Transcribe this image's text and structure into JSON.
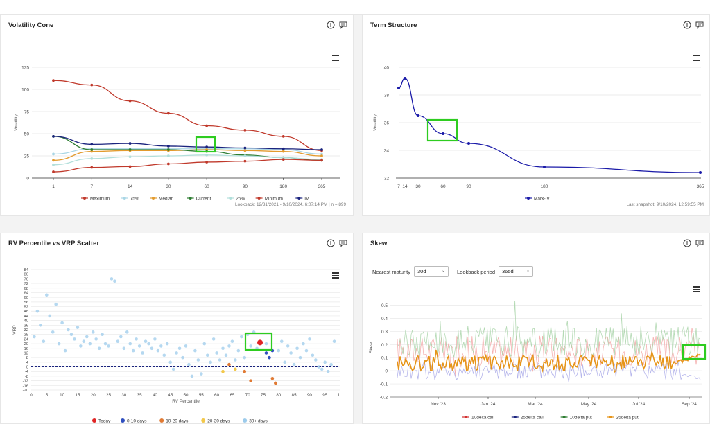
{
  "panels": {
    "vol_cone": {
      "title": "Volatility Cone",
      "footer": "Lookback: 12/31/2021 - 9/10/2024, 6:07:14 PM | n = 899"
    },
    "term": {
      "title": "Term Structure",
      "footer": "Last snapshot: 9/10/2024, 12:59:55 PM"
    },
    "scatter": {
      "title": "RV Percentile vs VRP Scatter"
    },
    "skew": {
      "title": "Skew",
      "nearest_label": "Nearest maturity",
      "nearest_value": "30d",
      "lookback_label": "Lookback period",
      "lookback_value": "365d"
    }
  },
  "icons": {
    "info": "info-icon",
    "comment": "comment-icon",
    "menu": "hamburger-menu-icon"
  },
  "chart_data": [
    {
      "type": "line",
      "title": "Volatility Cone",
      "ylabel": "Volatility",
      "categories": [
        "1",
        "7",
        "14",
        "30",
        "60",
        "90",
        "180",
        "365"
      ],
      "yticks": [
        0,
        25,
        50,
        75,
        100,
        125
      ],
      "ylim": [
        0,
        125
      ],
      "series": [
        {
          "name": "Maximum",
          "color": "#c0392b",
          "values": [
            110,
            105,
            87,
            73,
            59,
            54,
            47,
            31
          ]
        },
        {
          "name": "75%",
          "color": "#a9d6e5",
          "values": [
            27,
            33,
            33,
            33,
            33,
            33,
            32,
            27
          ]
        },
        {
          "name": "Median",
          "color": "#e39b2e",
          "values": [
            20,
            30,
            31,
            31,
            32,
            31,
            30,
            25
          ]
        },
        {
          "name": "Current",
          "color": "#2e7d32",
          "values": [
            47,
            32,
            32,
            32,
            30,
            26,
            23,
            20
          ]
        },
        {
          "name": "25%",
          "color": "#b2dfdb",
          "values": [
            15,
            22,
            24,
            25,
            26,
            25,
            23,
            21
          ]
        },
        {
          "name": "Minimum",
          "color": "#c0392b",
          "values": [
            7,
            12,
            13,
            16,
            18,
            19,
            21,
            20
          ]
        },
        {
          "name": "IV",
          "color": "#1a237e",
          "values": [
            47,
            38,
            39,
            36,
            35,
            34,
            33,
            32
          ]
        }
      ]
    },
    {
      "type": "line",
      "title": "Term Structure",
      "ylabel": "Volatility",
      "xticks": [
        "7",
        "14",
        "30",
        "60",
        "90",
        "180",
        "365"
      ],
      "yticks": [
        32,
        34,
        36,
        38,
        40
      ],
      "ylim": [
        32,
        40
      ],
      "series": [
        {
          "name": "Mark-IV",
          "color": "#1a1aa8",
          "points": [
            [
              1,
              38.5
            ],
            [
              7,
              39.2
            ],
            [
              30,
              36.5
            ],
            [
              60,
              35.2
            ],
            [
              90,
              34.5
            ],
            [
              180,
              32.8
            ],
            [
              365,
              32.4
            ]
          ]
        }
      ]
    },
    {
      "type": "scatter",
      "title": "RV Percentile vs VRP Scatter",
      "xlabel": "RV Percentile",
      "ylabel": "VRP",
      "xticks": [
        "0",
        "5",
        "10",
        "15",
        "20",
        "25",
        "30",
        "35",
        "40",
        "45",
        "50",
        "55",
        "60",
        "65",
        "70",
        "75",
        "80",
        "85",
        "90",
        "95",
        "1..."
      ],
      "yticks": [
        -20,
        -16,
        -12,
        -8,
        -4,
        0,
        4,
        8,
        12,
        16,
        20,
        24,
        28,
        32,
        36,
        40,
        44,
        48,
        52,
        56,
        60,
        64,
        68,
        72,
        76,
        80,
        84
      ],
      "xlim": [
        0,
        100
      ],
      "ylim": [
        -20,
        84
      ],
      "legend": [
        "Today",
        "0-10 days",
        "10-20 days",
        "20-30 days",
        "30+ days"
      ],
      "series": [
        {
          "name": "Today",
          "color": "#e02424",
          "points": [
            [
              74,
              21
            ]
          ]
        },
        {
          "name": "0-10 days",
          "color": "#2f4fbf",
          "points": [
            [
              76,
              12
            ],
            [
              77,
              8
            ],
            [
              78,
              14
            ]
          ]
        },
        {
          "name": "10-20 days",
          "color": "#e07a34",
          "points": [
            [
              64,
              2
            ],
            [
              69,
              -4
            ],
            [
              71,
              -12
            ],
            [
              78,
              -10
            ],
            [
              79,
              -14
            ]
          ]
        },
        {
          "name": "20-30 days",
          "color": "#f2c84b",
          "points": [
            [
              62,
              -4
            ],
            [
              66,
              -2
            ]
          ]
        },
        {
          "name": "30+ days",
          "color": "#9ccbeb",
          "points": [
            [
              1,
              26
            ],
            [
              2,
              48
            ],
            [
              3,
              36
            ],
            [
              4,
              22
            ],
            [
              5,
              62
            ],
            [
              6,
              44
            ],
            [
              7,
              30
            ],
            [
              8,
              54
            ],
            [
              9,
              20
            ],
            [
              10,
              38
            ],
            [
              11,
              14
            ],
            [
              12,
              32
            ],
            [
              13,
              28
            ],
            [
              14,
              24
            ],
            [
              15,
              34
            ],
            [
              16,
              18
            ],
            [
              17,
              22
            ],
            [
              18,
              26
            ],
            [
              19,
              20
            ],
            [
              20,
              30
            ],
            [
              21,
              24
            ],
            [
              22,
              16
            ],
            [
              23,
              28
            ],
            [
              24,
              20
            ],
            [
              25,
              18
            ],
            [
              26,
              76
            ],
            [
              27,
              74
            ],
            [
              28,
              22
            ],
            [
              29,
              26
            ],
            [
              30,
              16
            ],
            [
              31,
              30
            ],
            [
              32,
              20
            ],
            [
              33,
              14
            ],
            [
              34,
              24
            ],
            [
              35,
              18
            ],
            [
              36,
              12
            ],
            [
              37,
              22
            ],
            [
              38,
              20
            ],
            [
              39,
              16
            ],
            [
              40,
              24
            ],
            [
              41,
              14
            ],
            [
              42,
              18
            ],
            [
              43,
              10
            ],
            [
              44,
              20
            ],
            [
              45,
              4
            ],
            [
              46,
              -2
            ],
            [
              47,
              12
            ],
            [
              48,
              16
            ],
            [
              49,
              8
            ],
            [
              50,
              18
            ],
            [
              51,
              2
            ],
            [
              52,
              -8
            ],
            [
              53,
              14
            ],
            [
              54,
              6
            ],
            [
              55,
              -6
            ],
            [
              56,
              20
            ],
            [
              57,
              10
            ],
            [
              58,
              4
            ],
            [
              59,
              24
            ],
            [
              60,
              12
            ],
            [
              61,
              6
            ],
            [
              62,
              16
            ],
            [
              63,
              10
            ],
            [
              64,
              18
            ],
            [
              65,
              22
            ],
            [
              66,
              6
            ],
            [
              67,
              14
            ],
            [
              68,
              26
            ],
            [
              69,
              8
            ],
            [
              70,
              28
            ],
            [
              71,
              18
            ],
            [
              72,
              30
            ],
            [
              73,
              16
            ],
            [
              76,
              20
            ],
            [
              80,
              14
            ],
            [
              81,
              22
            ],
            [
              82,
              4
            ],
            [
              83,
              18
            ],
            [
              84,
              12
            ],
            [
              85,
              2
            ],
            [
              86,
              16
            ],
            [
              87,
              8
            ],
            [
              88,
              20
            ],
            [
              89,
              14
            ],
            [
              90,
              24
            ],
            [
              91,
              10
            ],
            [
              92,
              6
            ],
            [
              93,
              0
            ],
            [
              94,
              -2
            ],
            [
              95,
              4
            ],
            [
              96,
              -4
            ],
            [
              97,
              2
            ],
            [
              98,
              22
            ]
          ]
        }
      ]
    },
    {
      "type": "line",
      "title": "Skew",
      "ylabel": "Skew",
      "xticks": [
        "Nov '23",
        "Jan '24",
        "Mar '24",
        "May '24",
        "Jul '24",
        "Sep '24"
      ],
      "yticks": [
        -0.2,
        -0.1,
        0,
        0.1,
        0.2,
        0.3,
        0.4,
        0.5
      ],
      "ylim": [
        -0.2,
        0.55
      ],
      "legend": [
        "10delta call",
        "25delta call",
        "10delta put",
        "25delta put"
      ],
      "series": [
        {
          "name": "10delta call",
          "color": "#f3a3a3",
          "base": 0.15,
          "amp": 0.12
        },
        {
          "name": "25delta call",
          "color": "#a8a8e8",
          "base": 0.0,
          "amp": 0.07
        },
        {
          "name": "10delta put",
          "color": "#a8d4a8",
          "base": 0.22,
          "amp": 0.12
        },
        {
          "name": "25delta put",
          "color": "#e69418",
          "base": 0.06,
          "amp": 0.06
        }
      ]
    }
  ]
}
